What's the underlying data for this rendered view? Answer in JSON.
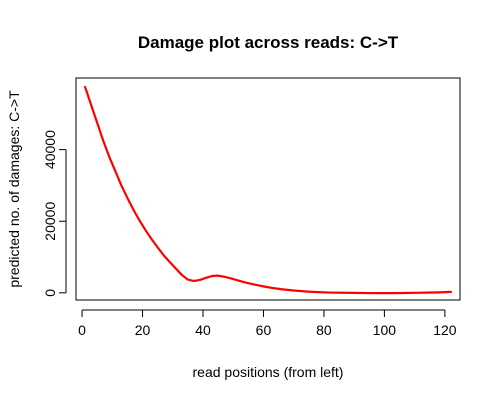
{
  "chart_data": {
    "type": "line",
    "title": "Damage plot across reads: C->T",
    "xlabel": "read positions (from left)",
    "ylabel": "predicted no. of damages: C->T",
    "xlim": [
      -2,
      125
    ],
    "ylim": [
      -2000,
      60000
    ],
    "x_ticks": [
      0,
      20,
      40,
      60,
      80,
      100,
      120
    ],
    "y_ticks": [
      0,
      20000,
      40000
    ],
    "grid": false,
    "legend": "none",
    "series": [
      {
        "color": "#ff0000",
        "points": [
          [
            1,
            57500
          ],
          [
            3,
            52500
          ],
          [
            5,
            47500
          ],
          [
            7,
            42500
          ],
          [
            9,
            38000
          ],
          [
            11,
            34000
          ],
          [
            13,
            30000
          ],
          [
            15,
            26500
          ],
          [
            17,
            23200
          ],
          [
            19,
            20200
          ],
          [
            21,
            17500
          ],
          [
            23,
            15000
          ],
          [
            25,
            12700
          ],
          [
            27,
            10500
          ],
          [
            29,
            8600
          ],
          [
            31,
            6800
          ],
          [
            33,
            5000
          ],
          [
            35,
            3700
          ],
          [
            37,
            3300
          ],
          [
            39,
            3600
          ],
          [
            41,
            4200
          ],
          [
            43,
            4700
          ],
          [
            45,
            4800
          ],
          [
            47,
            4500
          ],
          [
            49,
            4100
          ],
          [
            51,
            3600
          ],
          [
            53,
            3100
          ],
          [
            55,
            2700
          ],
          [
            57,
            2300
          ],
          [
            60,
            1800
          ],
          [
            63,
            1350
          ],
          [
            66,
            1000
          ],
          [
            70,
            650
          ],
          [
            74,
            380
          ],
          [
            78,
            200
          ],
          [
            82,
            80
          ],
          [
            86,
            20
          ],
          [
            90,
            -20
          ],
          [
            94,
            -60
          ],
          [
            98,
            -80
          ],
          [
            102,
            -70
          ],
          [
            106,
            -40
          ],
          [
            110,
            10
          ],
          [
            114,
            70
          ],
          [
            118,
            140
          ],
          [
            122,
            260
          ]
        ]
      }
    ]
  }
}
